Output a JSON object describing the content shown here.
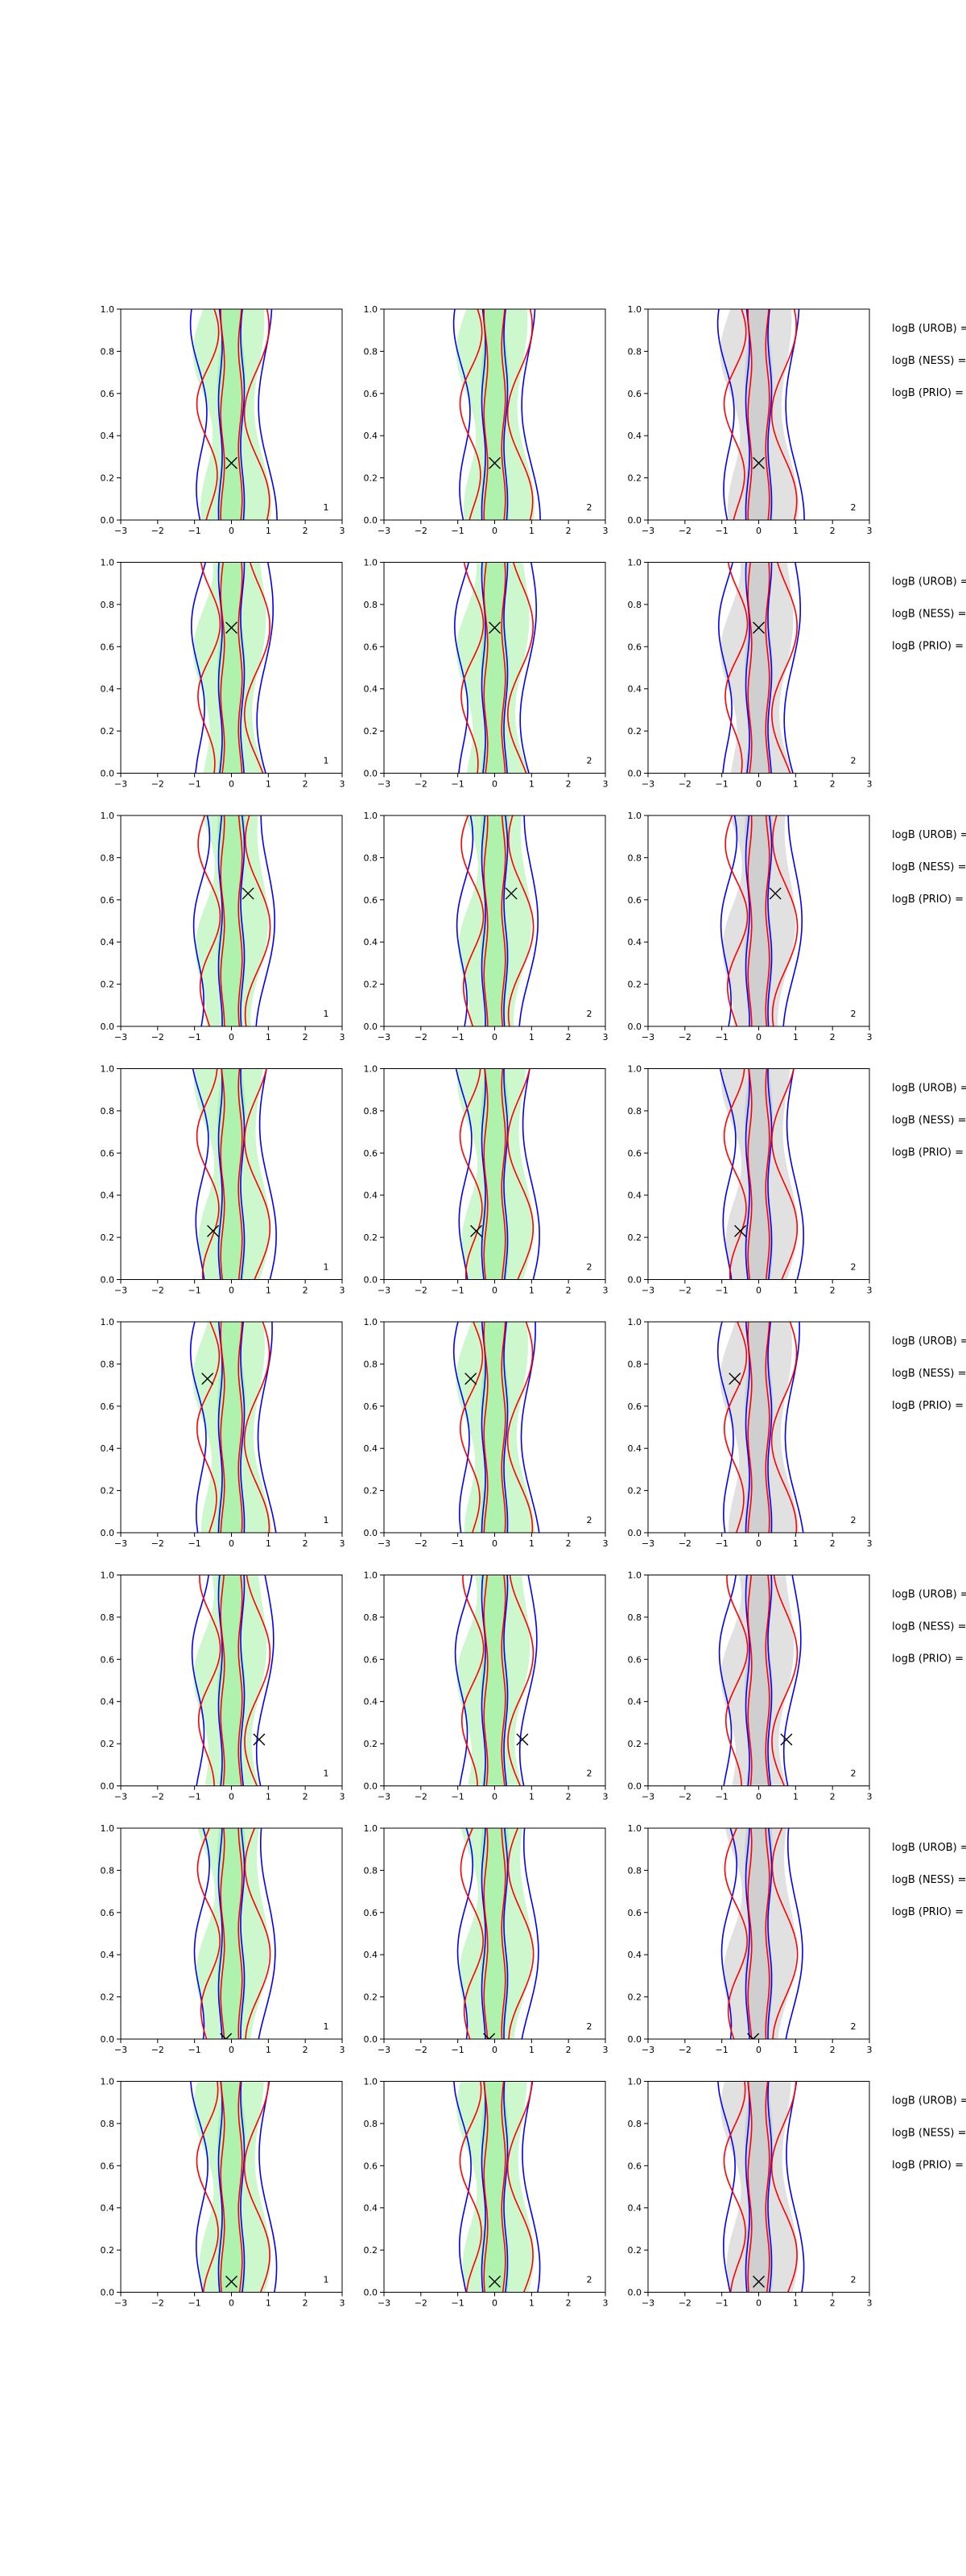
{
  "chart_data": {
    "type": "contour-grid",
    "rows": 8,
    "cols": 3,
    "xlim": [
      -3,
      3
    ],
    "ylim": [
      0.0,
      1.0
    ],
    "x_ticks": [
      "−3",
      "−2",
      "−1",
      "0",
      "1",
      "2",
      "3"
    ],
    "y_ticks": [
      "0.0",
      "0.2",
      "0.4",
      "0.6",
      "0.8",
      "1.0"
    ],
    "panel_labels": [
      "1",
      "2",
      "2"
    ],
    "legend_lines": [
      "logB (UROB) =",
      "logB (NESS) =",
      "logB (PRIO) ="
    ],
    "contour_colors": {
      "blue": "#0000ff",
      "red": "#ff0000",
      "fill_green": "#90ee90",
      "fill_grey": "#bdbdbd"
    },
    "markers": [
      {
        "x": 0.0,
        "y": 0.27
      },
      {
        "x": 0.0,
        "y": 0.69
      },
      {
        "x": 0.45,
        "y": 0.63
      },
      {
        "x": -0.5,
        "y": 0.23
      },
      {
        "x": -0.65,
        "y": 0.73
      },
      {
        "x": 0.75,
        "y": 0.22
      },
      {
        "x": -0.15,
        "y": 0.0
      },
      {
        "x": 0.0,
        "y": 0.05
      }
    ]
  }
}
